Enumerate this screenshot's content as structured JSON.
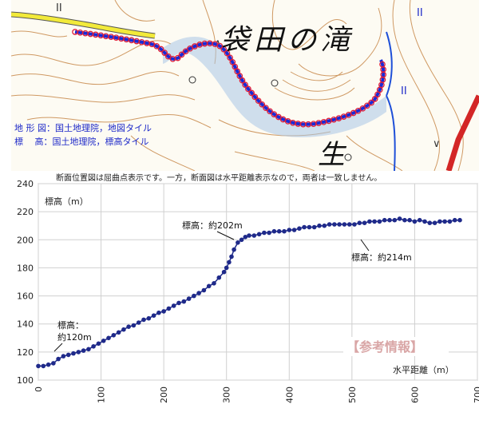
{
  "map": {
    "title": "袋田の滝",
    "sub_char": "生",
    "credit_1": "地 形 図：国土地理院，地図タイル",
    "credit_2": "標　 高：国土地理院，標高タイル",
    "colors": {
      "route_line": "#1a2ad6",
      "route_point": "#e0203a",
      "road": "#f2ea3a",
      "river": "#1e4fd8",
      "contour": "#c8894a"
    }
  },
  "chart_data": {
    "type": "line",
    "title": "",
    "note": "断面位置図は屈曲点表示です。一方，断面図は水平距離表示なので，両者は一致しません。",
    "xlabel": "水平距離（m）",
    "ylabel": "標高（m）",
    "xlim": [
      0,
      700
    ],
    "ylim": [
      100,
      240
    ],
    "xticks": [
      0,
      100,
      200,
      300,
      400,
      500,
      600,
      700
    ],
    "yticks": [
      100,
      120,
      140,
      160,
      180,
      200,
      220,
      240
    ],
    "grid": true,
    "series": [
      {
        "color": "#1f2a8a",
        "x": [
          0,
          8,
          16,
          24,
          32,
          40,
          48,
          56,
          64,
          72,
          80,
          88,
          96,
          104,
          112,
          120,
          128,
          136,
          144,
          152,
          160,
          168,
          176,
          184,
          192,
          200,
          208,
          216,
          224,
          232,
          240,
          248,
          256,
          264,
          272,
          280,
          288,
          296,
          300,
          304,
          308,
          312,
          318,
          324,
          330,
          336,
          344,
          352,
          360,
          368,
          376,
          384,
          392,
          400,
          408,
          416,
          424,
          432,
          440,
          448,
          456,
          464,
          472,
          480,
          488,
          496,
          504,
          512,
          520,
          528,
          536,
          544,
          552,
          560,
          568,
          576,
          584,
          592,
          600,
          608,
          616,
          624,
          632,
          640,
          648,
          656,
          664,
          672
        ],
        "y": [
          110,
          110,
          111,
          112,
          115,
          117,
          118,
          119,
          120,
          121,
          122,
          124,
          126,
          128,
          130,
          132,
          134,
          136,
          138,
          139,
          141,
          143,
          144,
          146,
          148,
          149,
          151,
          153,
          155,
          156,
          158,
          160,
          162,
          164,
          167,
          169,
          173,
          177,
          180,
          184,
          188,
          193,
          198,
          200,
          202,
          203,
          203,
          204,
          205,
          205,
          206,
          206,
          206,
          207,
          207,
          208,
          209,
          209,
          209,
          210,
          210,
          211,
          211,
          211,
          211,
          211,
          211,
          212,
          212,
          213,
          213,
          213,
          214,
          214,
          214,
          215,
          214,
          214,
          213,
          214,
          213,
          212,
          212,
          213,
          213,
          213,
          214,
          214
        ]
      }
    ],
    "annotations": [
      {
        "label_1": "標高：",
        "label_2": "約120m",
        "x": 72,
        "y": 121
      },
      {
        "label_1": "標高：約202m",
        "x": 330,
        "y": 202
      },
      {
        "label_1": "標高：約214m",
        "x": 520,
        "y": 212
      }
    ],
    "stamp": "【参考情報】"
  }
}
